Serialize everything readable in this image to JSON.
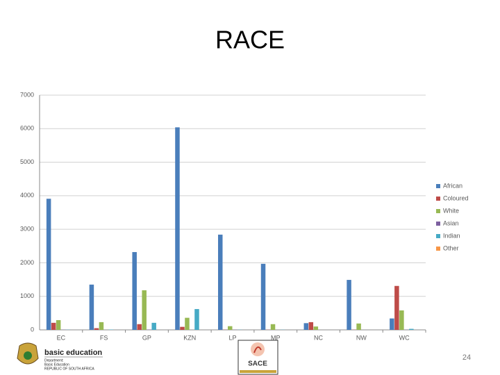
{
  "chart_data": {
    "type": "bar",
    "title": "RACE",
    "categories": [
      "EC",
      "FS",
      "GP",
      "KZN",
      "LP",
      "MP",
      "NC",
      "NW",
      "WC"
    ],
    "series": [
      {
        "name": "African",
        "color": "#4a7ebb",
        "values": [
          3910,
          1350,
          2320,
          6040,
          2840,
          1970,
          200,
          1490,
          340
        ]
      },
      {
        "name": "Coloured",
        "color": "#be4b48",
        "values": [
          210,
          50,
          170,
          90,
          5,
          5,
          230,
          5,
          1310
        ]
      },
      {
        "name": "White",
        "color": "#98b954",
        "values": [
          290,
          230,
          1180,
          360,
          110,
          170,
          100,
          190,
          580
        ]
      },
      {
        "name": "Asian",
        "color": "#7d60a0",
        "values": [
          5,
          0,
          10,
          0,
          5,
          0,
          0,
          0,
          5
        ]
      },
      {
        "name": "Indian",
        "color": "#46aac5",
        "values": [
          5,
          10,
          210,
          620,
          5,
          5,
          0,
          0,
          30
        ]
      },
      {
        "name": "Other",
        "color": "#f79646",
        "values": [
          0,
          0,
          0,
          0,
          0,
          0,
          0,
          0,
          0
        ]
      }
    ],
    "ylim": [
      0,
      7000
    ],
    "yticks": [
      0,
      1000,
      2000,
      3000,
      4000,
      5000,
      6000,
      7000
    ],
    "grid": true,
    "legend": "right"
  },
  "footer": {
    "logo_title": "basic education",
    "logo_line1": "Department:",
    "logo_line2": "Basic Education",
    "logo_line3": "REPUBLIC OF SOUTH AFRICA",
    "sace": "SACE",
    "page_number": "24"
  }
}
